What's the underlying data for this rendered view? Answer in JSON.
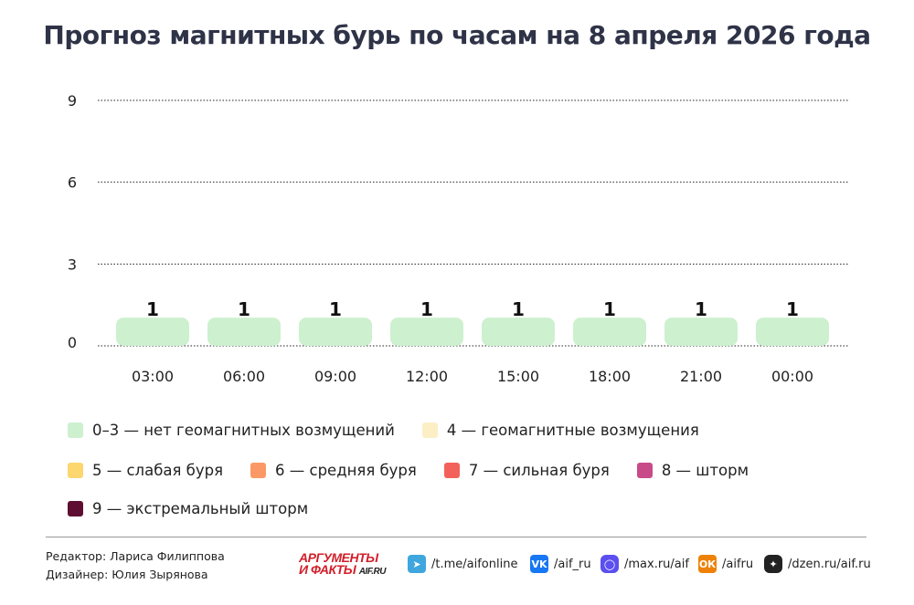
{
  "title": "Прогноз магнитных бурь по часам на 8 апреля 2026 года",
  "chart_data": {
    "type": "bar",
    "title": "Прогноз магнитных бурь по часам на 8 апреля 2026 года",
    "categories": [
      "03:00",
      "06:00",
      "09:00",
      "12:00",
      "15:00",
      "18:00",
      "21:00",
      "00:00"
    ],
    "values": [
      1,
      1,
      1,
      1,
      1,
      1,
      1,
      1
    ],
    "yticks": [
      0,
      3,
      6,
      9
    ],
    "ylim": [
      0,
      9
    ],
    "grid": true,
    "bar_color": "#cdf0cf",
    "legend_placement": "bottom"
  },
  "legend": [
    {
      "label": "0–3 — нет геомагнитных возмущений",
      "color": "#cdf0cf"
    },
    {
      "label": "4 — геомагнитные возмущения",
      "color": "#fcefc6"
    },
    {
      "label": "5 — слабая буря",
      "color": "#fcd66e"
    },
    {
      "label": "6 — средняя буря",
      "color": "#fb9966"
    },
    {
      "label": "7 — сильная буря",
      "color": "#f2625a"
    },
    {
      "label": "8 — шторм",
      "color": "#c84b88"
    },
    {
      "label": "9 — экстремальный шторм",
      "color": "#5e0f31"
    }
  ],
  "footer": {
    "editor": "Редактор: Лариса Филиппова",
    "designer": "Дизайнер: Юлия Зырянова",
    "logo_line1": "АРГУМЕНТЫ",
    "logo_line2": "И ФАКТЫ",
    "logo_site": "AIF.RU",
    "social": [
      {
        "icon": "telegram-icon",
        "label": "/t.me/aifonline",
        "color": "#3fa6de"
      },
      {
        "icon": "vk-icon",
        "label": "/aif_ru",
        "color": "#1877f2"
      },
      {
        "icon": "max-icon",
        "label": "/max.ru/aif",
        "color": "#5b4ff0"
      },
      {
        "icon": "odnoklassniki-icon",
        "label": "/aifru",
        "color": "#ee8208"
      },
      {
        "icon": "dzen-icon",
        "label": "/dzen.ru/aif.ru",
        "color": "#222222"
      }
    ]
  }
}
